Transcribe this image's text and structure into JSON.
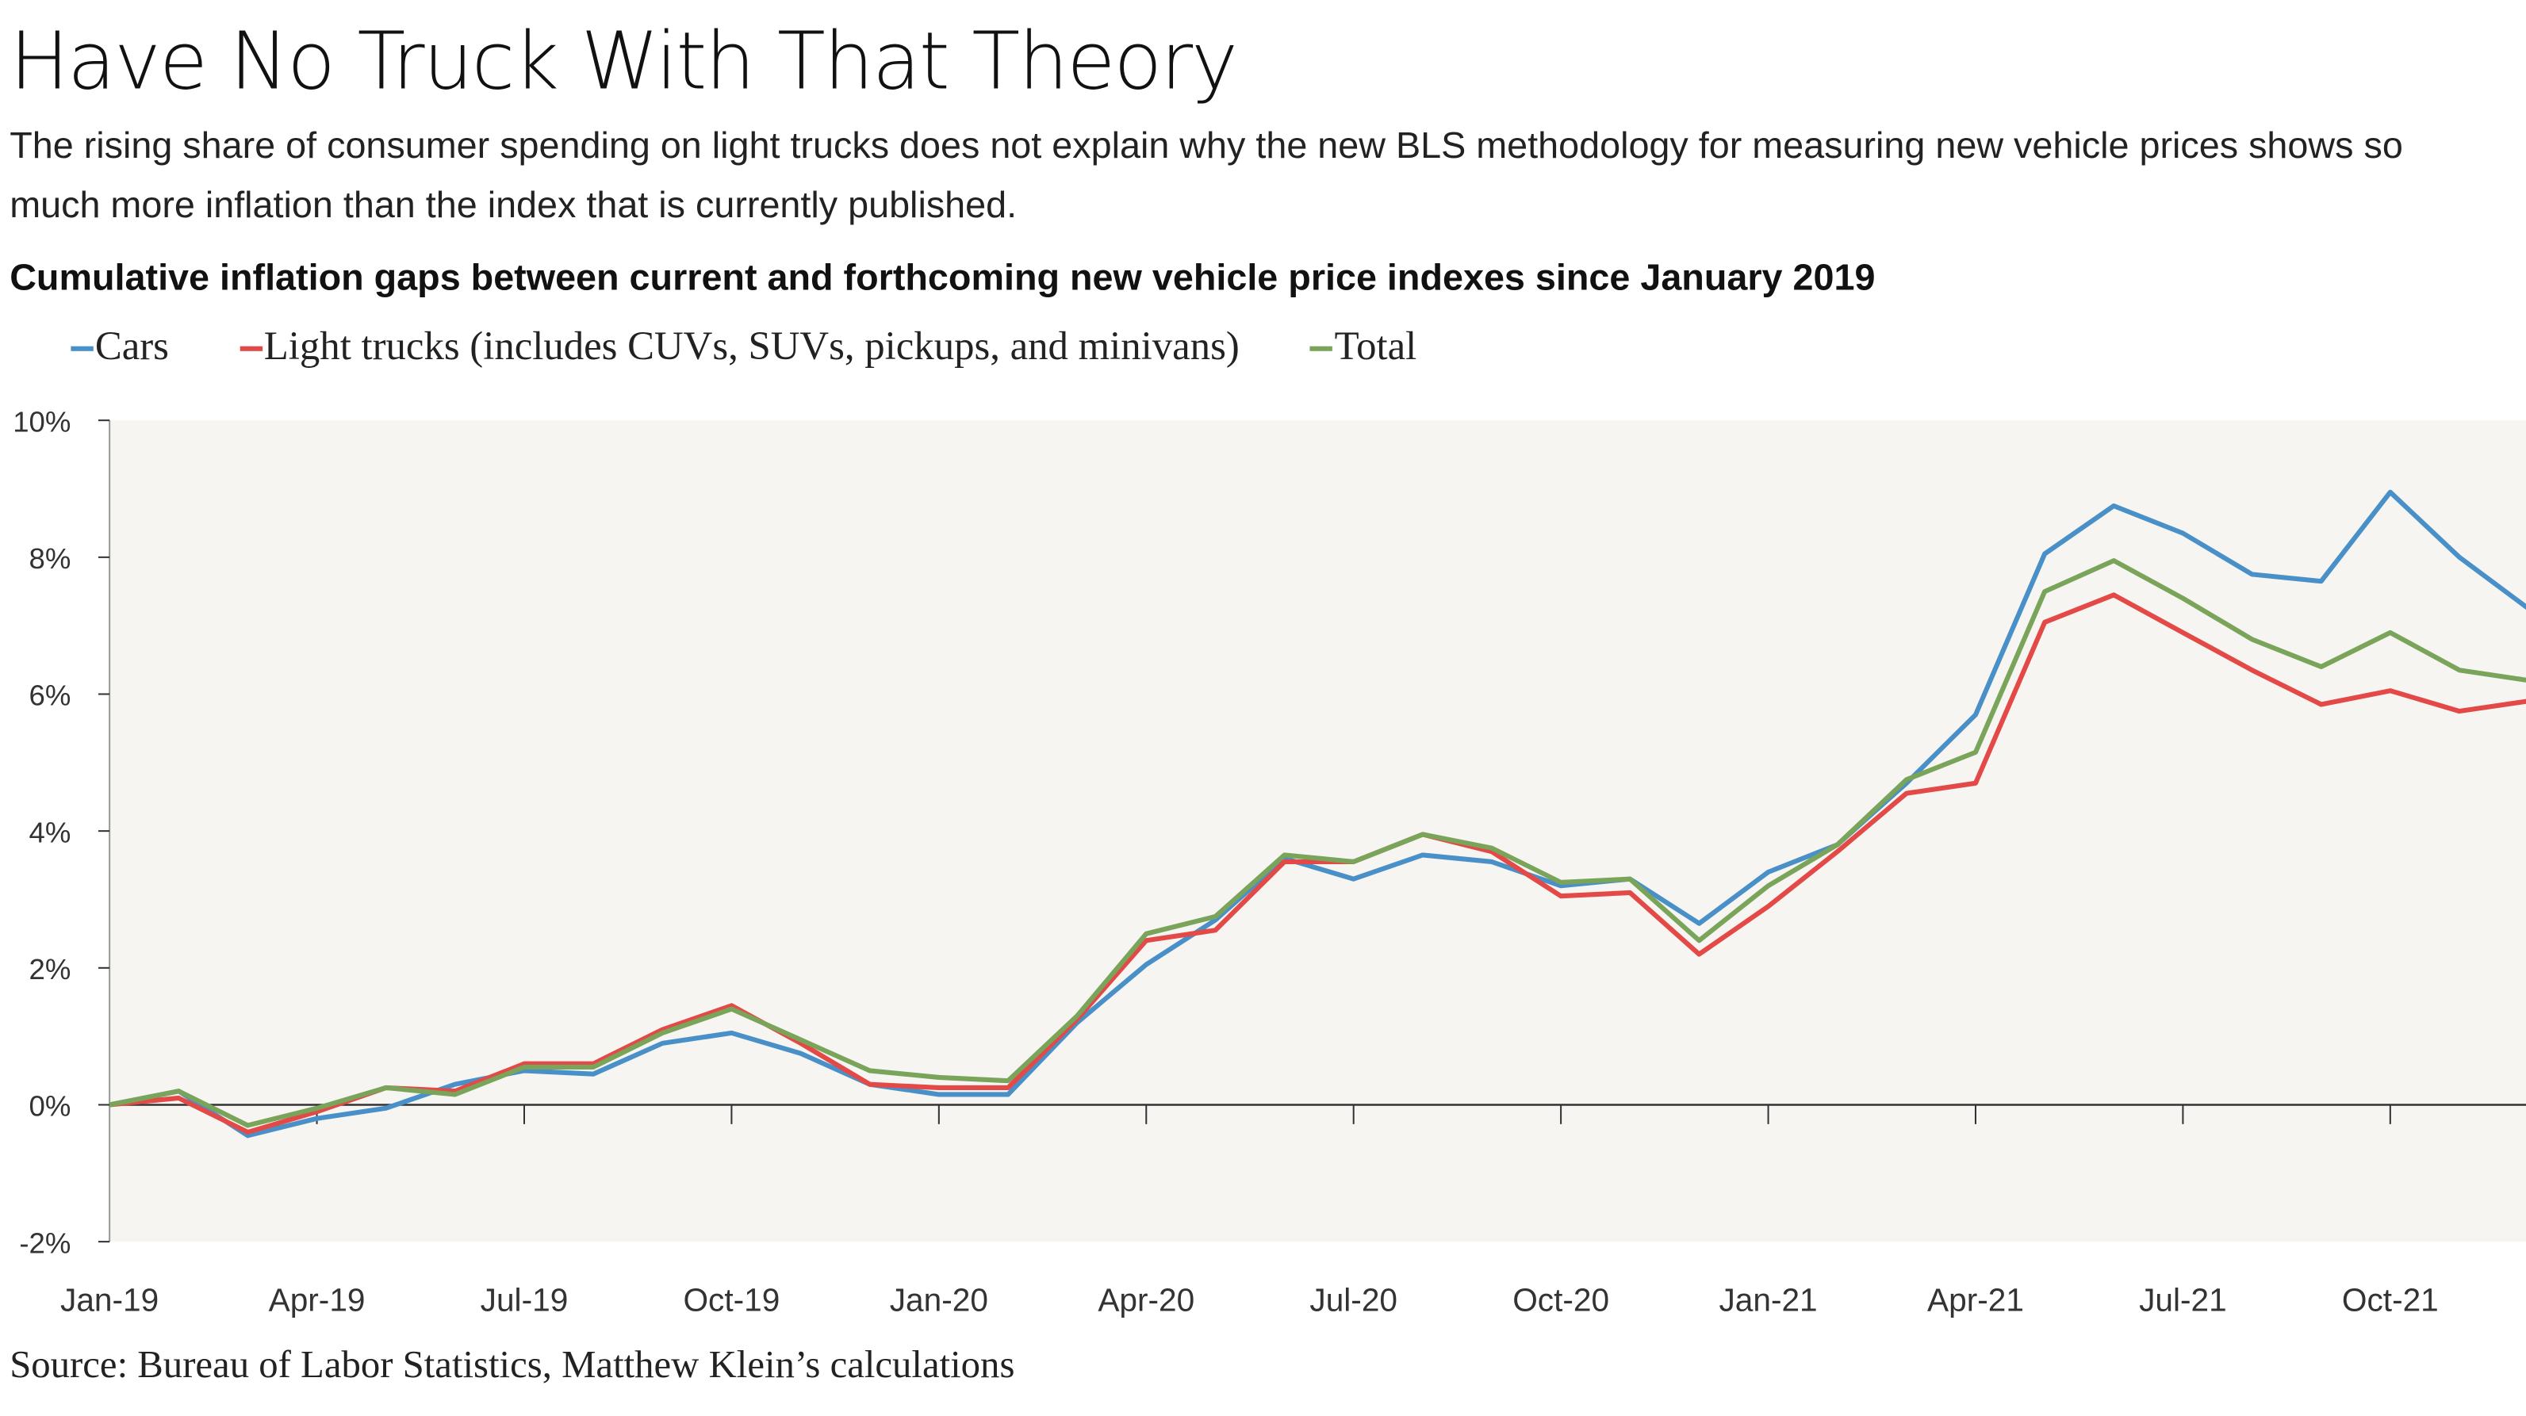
{
  "title": "Have No Truck With That Theory",
  "subtitle": "The rising share of consumer spending on light trucks does not explain why the new BLS methodology for measuring new vehicle prices shows so much more inflation than the index that is currently published.",
  "source": "Source: Bureau of Labor Statistics, Matthew Klein’s calculations",
  "colors": {
    "cars": "#4a90c8",
    "trucks": "#e34a47",
    "total": "#79a45a",
    "plot_bg": "#f6f5f2"
  },
  "chart_data": {
    "type": "line",
    "title": "Cumulative inflation gaps between current and forthcoming new vehicle price indexes since January 2019",
    "xlabel": "",
    "ylabel": "",
    "ylim": [
      -2,
      10
    ],
    "yticks": [
      "10%",
      "8%",
      "6%",
      "4%",
      "2%",
      "0%",
      "-2%"
    ],
    "ytick_values": [
      10,
      8,
      6,
      4,
      2,
      0,
      -2
    ],
    "xtick_labels": [
      "Jan-19",
      "Apr-19",
      "Jul-19",
      "Oct-19",
      "Jan-20",
      "Apr-20",
      "Jul-20",
      "Oct-20",
      "Jan-21",
      "Apr-21",
      "Jul-21",
      "Oct-21"
    ],
    "x": [
      "Jan-19",
      "Feb-19",
      "Mar-19",
      "Apr-19",
      "May-19",
      "Jun-19",
      "Jul-19",
      "Aug-19",
      "Sep-19",
      "Oct-19",
      "Nov-19",
      "Dec-19",
      "Jan-20",
      "Feb-20",
      "Mar-20",
      "Apr-20",
      "May-20",
      "Jun-20",
      "Jul-20",
      "Aug-20",
      "Sep-20",
      "Oct-20",
      "Nov-20",
      "Dec-20",
      "Jan-21",
      "Feb-21",
      "Mar-21",
      "Apr-21",
      "May-21",
      "Jun-21",
      "Jul-21",
      "Aug-21",
      "Sep-21",
      "Oct-21",
      "Nov-21",
      "Dec-21"
    ],
    "legend_position": "top-left",
    "series": [
      {
        "name": "Cars",
        "key": "cars",
        "values": [
          0,
          0.2,
          -0.45,
          -0.2,
          -0.05,
          0.3,
          0.5,
          0.45,
          0.9,
          1.05,
          0.75,
          0.3,
          0.15,
          0.15,
          1.2,
          2.05,
          2.7,
          3.6,
          3.3,
          3.65,
          3.55,
          3.2,
          3.3,
          2.65,
          3.4,
          3.8,
          4.7,
          5.7,
          8.05,
          8.75,
          8.35,
          7.75,
          7.65,
          8.95,
          8.0,
          7.25
        ]
      },
      {
        "name": "Light trucks (includes CUVs, SUVs, pickups, and minivans)",
        "key": "trucks",
        "values": [
          0,
          0.1,
          -0.4,
          -0.1,
          0.25,
          0.2,
          0.6,
          0.6,
          1.1,
          1.45,
          0.9,
          0.3,
          0.25,
          0.25,
          1.25,
          2.4,
          2.55,
          3.55,
          3.55,
          3.95,
          3.7,
          3.05,
          3.1,
          2.2,
          2.9,
          3.7,
          4.55,
          4.7,
          7.05,
          7.45,
          6.9,
          6.35,
          5.85,
          6.05,
          5.75,
          5.9
        ]
      },
      {
        "name": "Total",
        "key": "total",
        "values": [
          0,
          0.2,
          -0.3,
          -0.05,
          0.25,
          0.15,
          0.55,
          0.55,
          1.05,
          1.4,
          0.95,
          0.5,
          0.4,
          0.35,
          1.3,
          2.5,
          2.75,
          3.65,
          3.55,
          3.95,
          3.75,
          3.25,
          3.3,
          2.4,
          3.2,
          3.8,
          4.75,
          5.15,
          7.5,
          7.95,
          7.4,
          6.8,
          6.4,
          6.9,
          6.35,
          6.2
        ]
      }
    ]
  }
}
